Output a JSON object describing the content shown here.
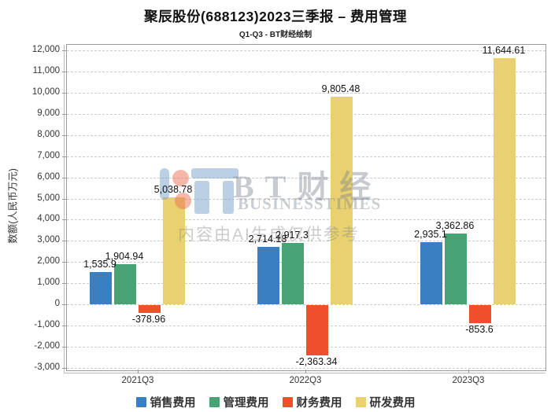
{
  "chart_data": {
    "type": "bar",
    "title": "聚辰股份(688123)2023三季报 – 费用管理",
    "subtitle": "Q1-Q3 - BT财经绘制",
    "ylabel": "数额(人民币万元)",
    "xlabel": "",
    "categories": [
      "2021Q3",
      "2022Q3",
      "2023Q3"
    ],
    "series": [
      {
        "name": "销售费用",
        "color": "#3a7fc1",
        "values": [
          1535.9,
          2714.13,
          2935.1
        ],
        "labels": [
          "1,535.9",
          "2,714.13",
          "2,935.1"
        ]
      },
      {
        "name": "管理费用",
        "color": "#47a274",
        "values": [
          1904.94,
          2917.3,
          3362.86
        ],
        "labels": [
          "1,904.94",
          "2,917.3",
          "3,362.86"
        ]
      },
      {
        "name": "财务费用",
        "color": "#f04f2d",
        "values": [
          -378.96,
          -2363.34,
          -853.6
        ],
        "labels": [
          "-378.96",
          "-2,363.34",
          "-853.6"
        ]
      },
      {
        "name": "研发费用",
        "color": "#e8d16e",
        "values": [
          5038.78,
          9805.48,
          11644.61
        ],
        "labels": [
          "5,038.78",
          "9,805.48",
          "11,644.61"
        ]
      }
    ],
    "ylim": [
      -3000,
      12000
    ],
    "ytick_step": 1000,
    "ytick_labels": [
      "-3,000",
      "-2,000",
      "-1,000",
      "0",
      "1,000",
      "2,000",
      "3,000",
      "4,000",
      "5,000",
      "6,000",
      "7,000",
      "8,000",
      "9,000",
      "10,000",
      "11,000",
      "12,000"
    ],
    "grid": true,
    "legend_position": "bottom"
  },
  "watermark": {
    "brand": "BT财经",
    "brand_sub": "BUSINESSTIMES",
    "disclaimer": "内容由AI生成仅供参考"
  }
}
